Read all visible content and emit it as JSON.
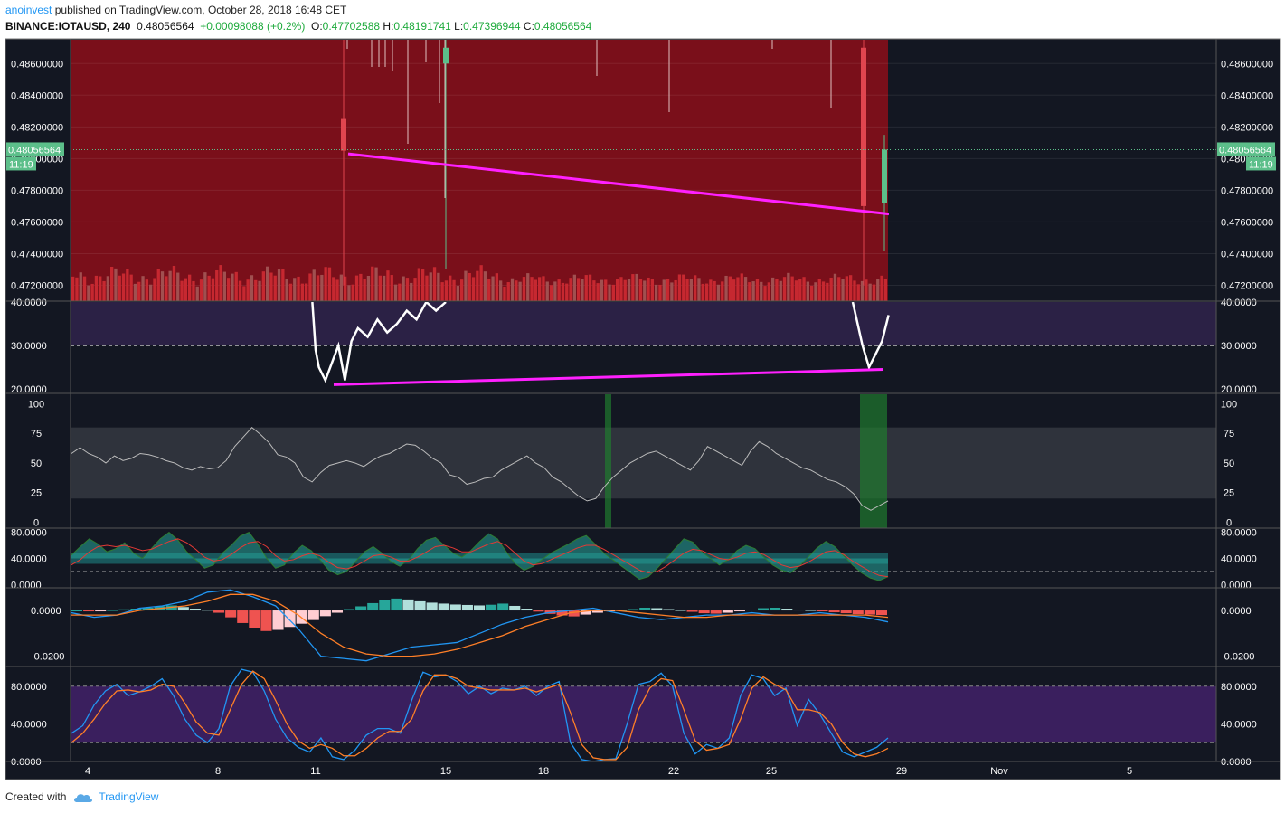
{
  "header": {
    "author": "anoinvest",
    "published": "published on TradingView.com, October 28, 2018 16:48 CET",
    "symbol": "BINANCE:IOTAUSD, 240",
    "price": "0.48056564",
    "change": "+0.00098088 (+0.2%)",
    "o_label": "O:",
    "o_value": "0.47702588",
    "h_label": "H:",
    "h_value": "0.48191741",
    "l_label": "L:",
    "l_value": "0.47396944",
    "c_label": "C:",
    "c_value": "0.48056564"
  },
  "footer": {
    "created_with": "Created with",
    "brand": "TradingView"
  },
  "colors": {
    "background": "#131722",
    "frame": "#2a2e39",
    "price_zone": "#7a0f1a",
    "up": "#5cbf8a",
    "down": "#e0454f",
    "trendline": "#ff20ff",
    "rsi_zone": "#2b2145",
    "stoch_zone": "#3a1f5e",
    "label_green": "#5cbf8a"
  },
  "price_tag": {
    "value": "0.48056564",
    "countdown": "11:19"
  },
  "x_axis": {
    "labels": [
      "4",
      "8",
      "11",
      "15",
      "18",
      "22",
      "25",
      "29",
      "Nov",
      "5"
    ]
  },
  "chart_data": [
    {
      "type": "candlestick",
      "title": "BINANCE:IOTAUSD, 240",
      "ylim": [
        0.471,
        0.4875
      ],
      "y_ticks": [
        "0.48600000",
        "0.48400000",
        "0.48200000",
        "0.48000000",
        "0.47800000",
        "0.47600000",
        "0.47400000",
        "0.47200000"
      ],
      "last_price": 0.48056564,
      "trendline": {
        "from": {
          "x": "12",
          "y": 0.4803
        },
        "to": {
          "x": "28",
          "y": 0.4765
        }
      },
      "shaded_zone": {
        "from": "3",
        "to": "28",
        "color": "#7a0f1a"
      },
      "volume": "shown as bars at bottom of pane",
      "notable_candles": [
        {
          "x": "11",
          "open": 0.4825,
          "high": 0.4875,
          "low": 0.472,
          "close": 0.4805
        },
        {
          "x": "15",
          "open": 0.486,
          "high": 0.4875,
          "low": 0.473,
          "close": 0.487
        },
        {
          "x": "28",
          "open": 0.487,
          "high": 0.4875,
          "low": 0.472,
          "close": 0.477
        },
        {
          "x": "28",
          "open": 0.4772,
          "high": 0.4815,
          "low": 0.4742,
          "close": 0.48056564
        }
      ]
    },
    {
      "type": "line",
      "title": "",
      "y_ticks": [
        "40.0000",
        "30.0000",
        "20.0000"
      ],
      "ylim": [
        19,
        40
      ],
      "reference_line": 30,
      "trendline": {
        "from": {
          "x": "11",
          "y": 21
        },
        "to": {
          "x": "28",
          "y": 24.5
        }
      },
      "x": [
        "10.9",
        "11.0",
        "11.1",
        "11.3",
        "11.5",
        "11.7",
        "11.9",
        "12.1",
        "12.3",
        "12.6",
        "12.9",
        "13.2",
        "13.5",
        "13.8",
        "14.1",
        "14.4",
        "14.7",
        "15.0",
        "27.5",
        "27.8",
        "28.0",
        "28.2",
        "28.4",
        "28.6"
      ],
      "values": [
        40,
        29,
        25,
        22,
        26,
        30,
        22,
        31,
        34,
        32,
        36,
        33,
        35,
        38,
        36,
        40,
        38,
        40,
        40,
        30,
        25,
        28,
        31,
        37
      ]
    },
    {
      "type": "line",
      "title": "",
      "y_ticks": [
        "100",
        "75",
        "50",
        "25",
        "0"
      ],
      "ylim": [
        -5,
        108
      ],
      "band": [
        20,
        80
      ],
      "highlights": [
        {
          "x": "19.8"
        },
        {
          "x": "28"
        }
      ],
      "values": [
        58,
        63,
        58,
        55,
        50,
        56,
        52,
        54,
        58,
        57,
        55,
        52,
        50,
        46,
        44,
        47,
        45,
        46,
        52,
        64,
        72,
        80,
        74,
        67,
        57,
        55,
        50,
        38,
        34,
        42,
        48,
        50,
        52,
        50,
        47,
        52,
        56,
        58,
        62,
        66,
        65,
        60,
        54,
        50,
        40,
        38,
        32,
        34,
        37,
        38,
        44,
        48,
        52,
        56,
        50,
        46,
        38,
        34,
        28,
        22,
        18,
        20,
        30,
        38,
        44,
        50,
        54,
        58,
        60,
        56,
        52,
        48,
        44,
        52,
        64,
        60,
        56,
        52,
        48,
        60,
        68,
        64,
        58,
        54,
        50,
        46,
        44,
        40,
        36,
        34,
        30,
        24,
        14,
        10,
        14,
        18
      ]
    },
    {
      "type": "area",
      "title": "",
      "y_ticks": [
        "80.0000",
        "40.0000",
        "0.0000"
      ],
      "ylim": [
        -5,
        85
      ],
      "reference_line": 20,
      "series": [
        {
          "values": [
            45,
            58,
            70,
            62,
            50,
            55,
            64,
            48,
            40,
            55,
            70,
            80,
            68,
            50,
            38,
            25,
            30,
            48,
            60,
            74,
            80,
            62,
            40,
            25,
            30,
            48,
            60,
            52,
            38,
            22,
            15,
            20,
            35,
            50,
            58,
            48,
            35,
            28,
            38,
            55,
            68,
            72,
            60,
            48,
            42,
            52,
            66,
            78,
            70,
            50,
            32,
            22,
            28,
            38,
            48,
            55,
            62,
            70,
            75,
            62,
            48,
            38,
            28,
            18,
            8,
            12,
            25,
            40,
            55,
            70,
            65,
            50,
            40,
            30,
            38,
            52,
            60,
            55,
            42,
            30,
            22,
            18,
            28,
            42,
            56,
            66,
            58,
            44,
            30,
            18,
            10,
            6,
            12
          ]
        },
        {
          "values": [
            30,
            38,
            50,
            58,
            60,
            58,
            60,
            56,
            52,
            54,
            60,
            66,
            70,
            64,
            54,
            42,
            36,
            38,
            46,
            56,
            64,
            66,
            58,
            44,
            36,
            38,
            44,
            48,
            44,
            34,
            26,
            24,
            28,
            36,
            44,
            46,
            42,
            36,
            36,
            42,
            50,
            58,
            60,
            56,
            50,
            50,
            56,
            62,
            66,
            60,
            48,
            36,
            30,
            32,
            38,
            44,
            50,
            56,
            60,
            60,
            54,
            46,
            38,
            30,
            22,
            18,
            20,
            28,
            38,
            48,
            54,
            52,
            46,
            40,
            38,
            42,
            48,
            50,
            46,
            38,
            30,
            26,
            28,
            34,
            42,
            50,
            52,
            46,
            36,
            28,
            20,
            14,
            12
          ]
        }
      ]
    },
    {
      "type": "bar",
      "title": "",
      "y_ticks": [
        "0.0000",
        "-0.0200"
      ],
      "ylim": [
        -0.0245,
        0.0095
      ],
      "histogram": [
        0.0,
        -0.0004,
        -0.0002,
        0.0002,
        0.0005,
        0.0008,
        0.0012,
        0.0018,
        0.0022,
        0.0015,
        0.0008,
        0.0003,
        -0.001,
        -0.003,
        -0.0055,
        -0.0075,
        -0.009,
        -0.0085,
        -0.0072,
        -0.0058,
        -0.0042,
        -0.0025,
        -0.001,
        0.0006,
        0.0018,
        0.0032,
        0.0045,
        0.0052,
        0.0048,
        0.004,
        0.0034,
        0.003,
        0.0026,
        0.0024,
        0.0022,
        0.0025,
        0.003,
        0.002,
        0.0008,
        -0.0005,
        -0.0015,
        -0.0022,
        -0.0026,
        -0.0018,
        -0.001,
        -0.0004,
        0.0002,
        0.0006,
        0.0012,
        0.001,
        0.0006,
        0.0002,
        -0.0006,
        -0.0012,
        -0.0014,
        -0.001,
        -0.0004,
        0.0004,
        0.001,
        0.0012,
        0.0008,
        0.0004,
        0.0002,
        -0.0004,
        -0.0008,
        -0.0012,
        -0.0016,
        -0.0018,
        -0.002
      ],
      "series": [
        {
          "values": [
            -0.001,
            -0.003,
            -0.002,
            0.001,
            0.002,
            0.004,
            0.008,
            0.009,
            0.006,
            0.002,
            -0.008,
            -0.02,
            -0.021,
            -0.022,
            -0.019,
            -0.016,
            -0.015,
            -0.014,
            -0.01,
            -0.006,
            -0.003,
            -0.001,
            0.0,
            0.001,
            -0.001,
            -0.003,
            -0.004,
            -0.003,
            -0.002,
            -0.002,
            -0.001,
            -0.002,
            -0.002,
            -0.001,
            -0.002,
            -0.003,
            -0.005
          ]
        },
        {
          "values": [
            -0.002,
            -0.002,
            -0.002,
            0.0,
            0.001,
            0.002,
            0.004,
            0.007,
            0.007,
            0.004,
            -0.002,
            -0.01,
            -0.016,
            -0.019,
            -0.02,
            -0.02,
            -0.019,
            -0.017,
            -0.014,
            -0.011,
            -0.007,
            -0.004,
            -0.001,
            0.0,
            0.0,
            -0.001,
            -0.002,
            -0.003,
            -0.003,
            -0.002,
            -0.002,
            -0.002,
            -0.002,
            -0.002,
            -0.002,
            -0.002,
            -0.003
          ]
        }
      ]
    },
    {
      "type": "line",
      "title": "",
      "y_ticks": [
        "80.0000",
        "40.0000",
        "0.0000"
      ],
      "ylim": [
        0,
        100
      ],
      "band": [
        20,
        80
      ],
      "series": [
        {
          "values": [
            30,
            38,
            60,
            75,
            82,
            70,
            74,
            80,
            88,
            70,
            45,
            28,
            20,
            35,
            80,
            98,
            95,
            75,
            45,
            25,
            15,
            10,
            25,
            5,
            2,
            12,
            28,
            35,
            35,
            30,
            65,
            95,
            90,
            92,
            85,
            72,
            80,
            72,
            78,
            76,
            80,
            70,
            80,
            85,
            20,
            2,
            0,
            2,
            3,
            40,
            82,
            85,
            94,
            80,
            30,
            8,
            18,
            14,
            25,
            70,
            92,
            88,
            70,
            78,
            38,
            66,
            50,
            30,
            10,
            5,
            10,
            15,
            25
          ]
        },
        {
          "values": [
            20,
            30,
            45,
            62,
            75,
            76,
            74,
            76,
            82,
            80,
            62,
            42,
            30,
            28,
            55,
            82,
            96,
            88,
            65,
            40,
            22,
            14,
            18,
            14,
            6,
            6,
            14,
            25,
            32,
            32,
            45,
            75,
            92,
            92,
            88,
            80,
            78,
            76,
            76,
            76,
            78,
            74,
            78,
            82,
            52,
            18,
            4,
            2,
            2,
            15,
            55,
            78,
            88,
            86,
            55,
            22,
            12,
            14,
            18,
            45,
            78,
            90,
            82,
            76,
            55,
            55,
            52,
            40,
            20,
            8,
            5,
            8,
            14
          ]
        }
      ]
    }
  ]
}
